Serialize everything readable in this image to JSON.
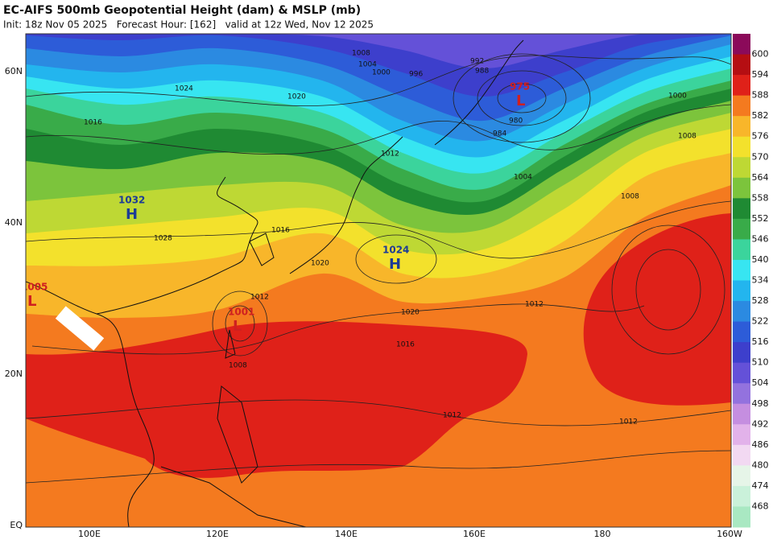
{
  "header": {
    "title": "EC-AIFS 500mb Geopotential Height (dam) & MSLP (mb)",
    "subtitle": "Init: 18z Nov 05 2025   Forecast Hour: [162]   valid at 12z Wed, Nov 12 2025"
  },
  "map": {
    "lat_labels": [
      "60N",
      "40N",
      "20N",
      "EQ"
    ],
    "lon_labels": [
      "100E",
      "120E",
      "140E",
      "160E",
      "180",
      "160W"
    ],
    "pressure_centers": [
      {
        "value": "975",
        "letter": "L"
      },
      {
        "value": "1032",
        "letter": "H"
      },
      {
        "value": "1024",
        "letter": "H"
      },
      {
        "value": "1001",
        "letter": "L"
      },
      {
        "value": "1005",
        "letter": "L"
      }
    ],
    "isobar_labels": [
      "1008",
      "1004",
      "1000",
      "996",
      "992",
      "988",
      "984",
      "980",
      "1024",
      "1020",
      "1016",
      "1012",
      "1028",
      "1016",
      "1020",
      "1012",
      "1008",
      "1020",
      "1016",
      "1012",
      "1012",
      "1008",
      "1004",
      "1000",
      "1012",
      "1008"
    ]
  },
  "colorbar": {
    "levels": [
      600,
      594,
      588,
      582,
      576,
      570,
      564,
      558,
      552,
      546,
      540,
      534,
      528,
      522,
      516,
      510,
      504,
      498,
      492,
      486,
      480,
      474,
      468
    ],
    "colors": [
      "#8b0a5a",
      "#b50e12",
      "#df2119",
      "#f47a1f",
      "#f8b62a",
      "#f3e12c",
      "#bed834",
      "#7cc43c",
      "#1f8a33",
      "#39ab49",
      "#3bd49c",
      "#37e5f1",
      "#23b5ee",
      "#2b8ae1",
      "#2d5cd8",
      "#3d3fcc",
      "#6451d8",
      "#9372de",
      "#c58ee0",
      "#e2b2ea",
      "#f2d9f2",
      "#e6f5e8",
      "#caf1da",
      "#a9e8c2"
    ]
  }
}
